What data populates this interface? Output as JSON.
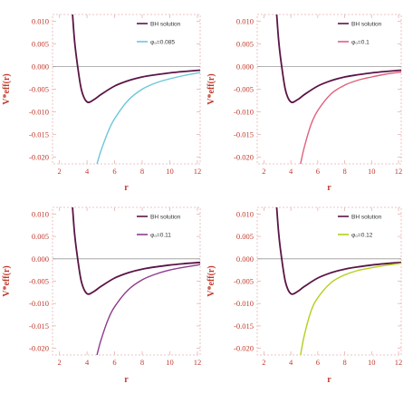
{
  "chart_data": [
    {
      "type": "line",
      "xlabel": "r",
      "ylabel": "V*eff(r)",
      "xlim": [
        1.5,
        12.2
      ],
      "ylim": [
        -0.0215,
        0.0115
      ],
      "xticks": [
        2,
        4,
        6,
        8,
        10,
        12
      ],
      "yticks": [
        0.01,
        0.005,
        0.0,
        -0.005,
        -0.01,
        -0.015,
        -0.02
      ],
      "x_tick_labels": [
        "2",
        "4",
        "6",
        "8",
        "10",
        "12"
      ],
      "y_tick_labels": [
        "0.010",
        "0.005",
        "0.000",
        "-0.005",
        "-0.010",
        "-0.015",
        "-0.020"
      ],
      "legend_position": "top-right",
      "colors": {
        "bh": "#5b1546",
        "phi": "#6cc6d9",
        "axis": "#e8b3b3",
        "zero": "#999999"
      },
      "series": [
        {
          "name": "BH solution",
          "color": "#5b1546",
          "x": [
            2.95,
            3.1,
            3.3,
            3.6,
            4.0,
            4.5,
            5.0,
            6.0,
            7.0,
            8.0,
            9.0,
            10.0,
            11.0,
            12.2
          ],
          "y": [
            0.0115,
            0.0055,
            0.0005,
            -0.0052,
            -0.0078,
            -0.0073,
            -0.0062,
            -0.0043,
            -0.0031,
            -0.0023,
            -0.0018,
            -0.0014,
            -0.0011,
            -0.0008
          ]
        },
        {
          "name": "φ₀=0.085",
          "color": "#6cc6d9",
          "x": [
            4.72,
            5.0,
            5.5,
            6.0,
            7.0,
            8.0,
            9.0,
            10.0,
            11.0,
            12.2
          ],
          "y": [
            -0.0215,
            -0.0187,
            -0.0146,
            -0.0115,
            -0.0074,
            -0.005,
            -0.0036,
            -0.0027,
            -0.002,
            -0.0013
          ]
        }
      ]
    },
    {
      "type": "line",
      "xlabel": "r",
      "ylabel": "V*eff(r)",
      "xlim": [
        1.5,
        12.2
      ],
      "ylim": [
        -0.0215,
        0.0115
      ],
      "xticks": [
        2,
        4,
        6,
        8,
        10,
        12
      ],
      "yticks": [
        0.01,
        0.005,
        0.0,
        -0.005,
        -0.01,
        -0.015,
        -0.02
      ],
      "x_tick_labels": [
        "2",
        "4",
        "6",
        "8",
        "10",
        "12"
      ],
      "y_tick_labels": [
        "0.010",
        "0.005",
        "0.000",
        "-0.005",
        "-0.010",
        "-0.015",
        "-0.020"
      ],
      "legend_position": "top-right",
      "colors": {
        "bh": "#5b1546",
        "phi": "#e0607e",
        "axis": "#e8b3b3",
        "zero": "#999999"
      },
      "series": [
        {
          "name": "BH solution",
          "color": "#5b1546",
          "x": [
            2.95,
            3.1,
            3.3,
            3.6,
            4.0,
            4.5,
            5.0,
            6.0,
            7.0,
            8.0,
            9.0,
            10.0,
            11.0,
            12.2
          ],
          "y": [
            0.0115,
            0.0055,
            0.0005,
            -0.0052,
            -0.0078,
            -0.0073,
            -0.0062,
            -0.0043,
            -0.0031,
            -0.0023,
            -0.0018,
            -0.0014,
            -0.0011,
            -0.0008
          ]
        },
        {
          "name": "φ₀=0.1",
          "color": "#e0607e",
          "x": [
            4.72,
            5.0,
            5.5,
            6.0,
            7.0,
            8.0,
            9.0,
            10.0,
            11.0,
            12.2
          ],
          "y": [
            -0.0215,
            -0.0178,
            -0.0128,
            -0.0097,
            -0.006,
            -0.0041,
            -0.003,
            -0.0023,
            -0.0017,
            -0.0012
          ]
        }
      ]
    },
    {
      "type": "line",
      "xlabel": "r",
      "ylabel": "V*eff(r)",
      "xlim": [
        1.5,
        12.2
      ],
      "ylim": [
        -0.0215,
        0.0115
      ],
      "xticks": [
        2,
        4,
        6,
        8,
        10,
        12
      ],
      "yticks": [
        0.01,
        0.005,
        0.0,
        -0.005,
        -0.01,
        -0.015,
        -0.02
      ],
      "x_tick_labels": [
        "2",
        "4",
        "6",
        "8",
        "10",
        "12"
      ],
      "y_tick_labels": [
        "0.010",
        "0.005",
        "0.000",
        "-0.005",
        "-0.010",
        "-0.015",
        "-0.020"
      ],
      "legend_position": "top-right",
      "colors": {
        "bh": "#5b1546",
        "phi": "#8e3a8e",
        "axis": "#e8b3b3",
        "zero": "#999999"
      },
      "series": [
        {
          "name": "BH solution",
          "color": "#5b1546",
          "x": [
            2.95,
            3.1,
            3.3,
            3.6,
            4.0,
            4.5,
            5.0,
            6.0,
            7.0,
            8.0,
            9.0,
            10.0,
            11.0,
            12.2
          ],
          "y": [
            0.0115,
            0.0055,
            0.0005,
            -0.0052,
            -0.0078,
            -0.0073,
            -0.0062,
            -0.0043,
            -0.0031,
            -0.0023,
            -0.0018,
            -0.0014,
            -0.0011,
            -0.0008
          ]
        },
        {
          "name": "φ₀=0.11",
          "color": "#8e3a8e",
          "x": [
            4.72,
            5.0,
            5.5,
            6.0,
            7.0,
            8.0,
            9.0,
            10.0,
            11.0,
            12.2
          ],
          "y": [
            -0.0215,
            -0.0183,
            -0.0138,
            -0.0107,
            -0.0069,
            -0.0047,
            -0.0034,
            -0.0025,
            -0.0019,
            -0.0013
          ]
        }
      ]
    },
    {
      "type": "line",
      "xlabel": "r",
      "ylabel": "V*eff(r)",
      "xlim": [
        1.5,
        12.2
      ],
      "ylim": [
        -0.0215,
        0.0115
      ],
      "xticks": [
        2,
        4,
        6,
        8,
        10,
        12
      ],
      "yticks": [
        0.01,
        0.005,
        0.0,
        -0.005,
        -0.01,
        -0.015,
        -0.02
      ],
      "x_tick_labels": [
        "2",
        "4",
        "6",
        "8",
        "10",
        "12"
      ],
      "y_tick_labels": [
        "0.010",
        "0.005",
        "0.000",
        "-0.005",
        "-0.010",
        "-0.015",
        "-0.020"
      ],
      "legend_position": "top-right",
      "colors": {
        "bh": "#5b1546",
        "phi": "#b5cf1a",
        "axis": "#e8b3b3",
        "zero": "#999999"
      },
      "series": [
        {
          "name": "BH solution",
          "color": "#5b1546",
          "x": [
            2.95,
            3.1,
            3.3,
            3.6,
            4.0,
            4.5,
            5.0,
            6.0,
            7.0,
            8.0,
            9.0,
            10.0,
            11.0,
            12.2
          ],
          "y": [
            0.0115,
            0.0055,
            0.0005,
            -0.0052,
            -0.0078,
            -0.0073,
            -0.0062,
            -0.0043,
            -0.0031,
            -0.0023,
            -0.0018,
            -0.0014,
            -0.0011,
            -0.0008
          ]
        },
        {
          "name": "φ₀=0.12",
          "color": "#b5cf1a",
          "x": [
            4.72,
            5.0,
            5.5,
            6.0,
            7.0,
            8.0,
            9.0,
            10.0,
            11.0,
            12.2
          ],
          "y": [
            -0.0215,
            -0.0171,
            -0.0117,
            -0.0087,
            -0.0053,
            -0.0036,
            -0.0026,
            -0.002,
            -0.0015,
            -0.001
          ]
        }
      ]
    }
  ]
}
